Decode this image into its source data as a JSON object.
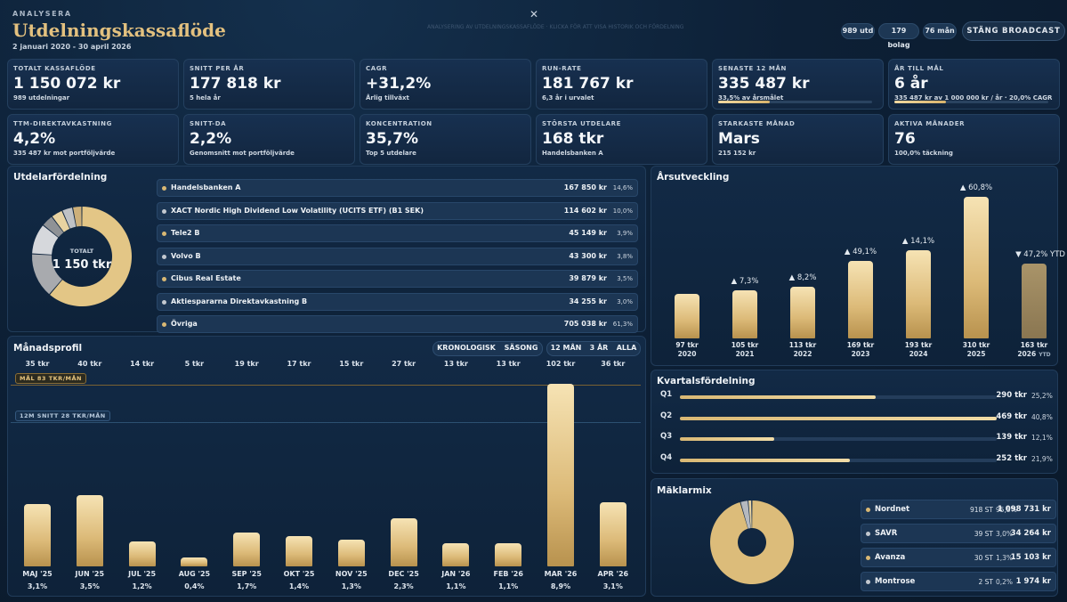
{
  "header": {
    "kicker": "ANALYSERA",
    "title": "Utdelningskassaflöde",
    "date_range": "2 januari 2020 - 30 april 2026",
    "close_icon": "close-icon",
    "faint_text": "ANALYSERING AV UTDELNINGSKASSAFLÖDE · KLICKA FÖR ATT VISA HISTORIK OCH FÖRDELNING",
    "pills": [
      "989 utd",
      "179 bolag",
      "76 mån"
    ],
    "stop_label": "STÄNG BROADCAST"
  },
  "kpis": [
    {
      "label": "TOTALT KASSAFLÖDE",
      "value": "1 150 072 kr",
      "sub": "989 utdelningar"
    },
    {
      "label": "SNITT PER ÅR",
      "value": "177 818 kr",
      "sub": "5 hela år"
    },
    {
      "label": "CAGR",
      "value": "+31,2%",
      "sub": "Årlig tillväxt"
    },
    {
      "label": "RUN-RATE",
      "value": "181 767 kr",
      "sub": "6,3 år i urvalet"
    },
    {
      "label": "SENASTE 12 MÅN",
      "value": "335 487 kr",
      "sub": "33,5% av årsmålet",
      "progress": 0.335
    },
    {
      "label": "ÅR TILL MÅL",
      "value": "6 år",
      "sub": "335 487 kr av 1 000 000 kr / år · 20,0% CAGR",
      "progress": 0.335
    },
    {
      "label": "TTM-DIREKTAVKASTNING",
      "value": "4,2%",
      "sub": "335 487 kr mot portföljvärde"
    },
    {
      "label": "SNITT-DA",
      "value": "2,2%",
      "sub": "Genomsnitt mot portföljvärde"
    },
    {
      "label": "KONCENTRATION",
      "value": "35,7%",
      "sub": "Top 5 utdelare"
    },
    {
      "label": "STÖRSTA UTDELARE",
      "value": "168 tkr",
      "sub": "Handelsbanken A"
    },
    {
      "label": "STARKASTE MÅNAD",
      "value": "Mars",
      "sub": "215 152 kr"
    },
    {
      "label": "AKTIVA MÅNADER",
      "value": "76",
      "sub": "100,0% täckning"
    }
  ],
  "distribution": {
    "title": "Utdelarfördelning",
    "donut_label": "TOTALT",
    "donut_value": "1 150 tkr",
    "rows": [
      {
        "name": "Handelsbanken A",
        "amount": "167 850 kr",
        "pct": "14,6%",
        "share": 14.6,
        "color": "#d9b874"
      },
      {
        "name": "XACT Nordic High Dividend Low Volatility (UCITS ETF) (B1 SEK)",
        "amount": "114 602 kr",
        "pct": "10,0%",
        "share": 10.0,
        "color": "#c3c8cf"
      },
      {
        "name": "Tele2 B",
        "amount": "45 149 kr",
        "pct": "3,9%",
        "share": 3.9,
        "color": "#d9b874"
      },
      {
        "name": "Volvo B",
        "amount": "43 300 kr",
        "pct": "3,8%",
        "share": 3.8,
        "color": "#c3c8cf"
      },
      {
        "name": "Cibus Real Estate",
        "amount": "39 879 kr",
        "pct": "3,5%",
        "share": 3.5,
        "color": "#d9b874"
      },
      {
        "name": "Aktiespროararna Direktavkastning B",
        "amount": "34 255 kr",
        "pct": "3,0%",
        "share": 3.0,
        "color": "#c3c8cf"
      },
      {
        "name": "Övriga",
        "amount": "705 038 kr",
        "pct": "61,3%",
        "share": 61.3,
        "color": "#d9b874"
      }
    ]
  },
  "monthly": {
    "title": "Månadsprofil",
    "view_buttons": [
      "KRONOLOGISK",
      "SÄSONG"
    ],
    "range_buttons": [
      "12 MÅN",
      "3 ÅR",
      "ALLA"
    ],
    "goal_tag": "MÅL 83 TKR/MÅN",
    "goal_value": 83,
    "avg_tag": "12M SNITT 28 TKR/MÅN",
    "avg_value": 28,
    "chart_data": {
      "type": "bar",
      "unit": "tkr",
      "categories": [
        "MAJ '25",
        "JUN '25",
        "JUL '25",
        "AUG '25",
        "SEP '25",
        "OKT '25",
        "NOV '25",
        "DEC '25",
        "JAN '26",
        "FEB '26",
        "MAR '26",
        "APR '26"
      ],
      "values": [
        35,
        40,
        14,
        5,
        19,
        17,
        15,
        27,
        13,
        13,
        102,
        36
      ],
      "value_labels": [
        "35 tkr",
        "40 tkr",
        "14 tkr",
        "5 tkr",
        "19 tkr",
        "17 tkr",
        "15 tkr",
        "27 tkr",
        "13 tkr",
        "13 tkr",
        "102 tkr",
        "36 tkr"
      ],
      "pct_labels": [
        "3,1%",
        "3,5%",
        "1,2%",
        "0,4%",
        "1,7%",
        "1,4%",
        "1,3%",
        "2,3%",
        "1,1%",
        "1,1%",
        "8,9%",
        "3,1%"
      ]
    }
  },
  "yearly": {
    "title": "Årsutveckling",
    "chart_data": {
      "type": "bar",
      "unit": "tkr",
      "categories": [
        "2020",
        "2021",
        "2022",
        "2023",
        "2024",
        "2025",
        "2026"
      ],
      "values": [
        97,
        105,
        113,
        169,
        193,
        310,
        163
      ],
      "value_labels": [
        "97 tkr",
        "105 tkr",
        "113 tkr",
        "169 tkr",
        "193 tkr",
        "310 tkr",
        "163 tkr"
      ],
      "growth": [
        "",
        "▲ 7,3%",
        "▲ 8,2%",
        "▲ 49,1%",
        "▲ 14,1%",
        "▲ 60,8%",
        "▼ 47,2% YTD"
      ],
      "ytd_suffix": "YTD"
    }
  },
  "quarterly": {
    "title": "Kvartalsfördelning",
    "chart_data": {
      "type": "bar",
      "categories": [
        "Q1",
        "Q2",
        "Q3",
        "Q4"
      ],
      "amounts": [
        "290 tkr",
        "469 tkr",
        "139 tkr",
        "252 tkr"
      ],
      "pct_labels": [
        "25,2%",
        "40,8%",
        "12,1%",
        "21,9%"
      ],
      "values": [
        290,
        469,
        139,
        252
      ]
    }
  },
  "brokers": {
    "title": "Mäklarmix",
    "chart_data": {
      "type": "pie",
      "categories": [
        "Nordnet",
        "SAVR",
        "Avanza",
        "Montrose"
      ],
      "values": [
        95.5,
        3.0,
        1.3,
        0.2
      ]
    },
    "rows": [
      {
        "name": "Nordnet",
        "count": "918 ST",
        "pct": "95,5%",
        "amount": "1 098 731 kr",
        "color": "#d9b874"
      },
      {
        "name": "SAVR",
        "count": "39 ST",
        "pct": "3,0%",
        "amount": "34 264 kr",
        "color": "#c3c8cf"
      },
      {
        "name": "Avanza",
        "count": "30 ST",
        "pct": "1,3%",
        "amount": "15 103 kr",
        "color": "#d9b874"
      },
      {
        "name": "Montrose",
        "count": "2 ST",
        "pct": "0,2%",
        "amount": "1 974 kr",
        "color": "#c3c8cf"
      }
    ]
  }
}
